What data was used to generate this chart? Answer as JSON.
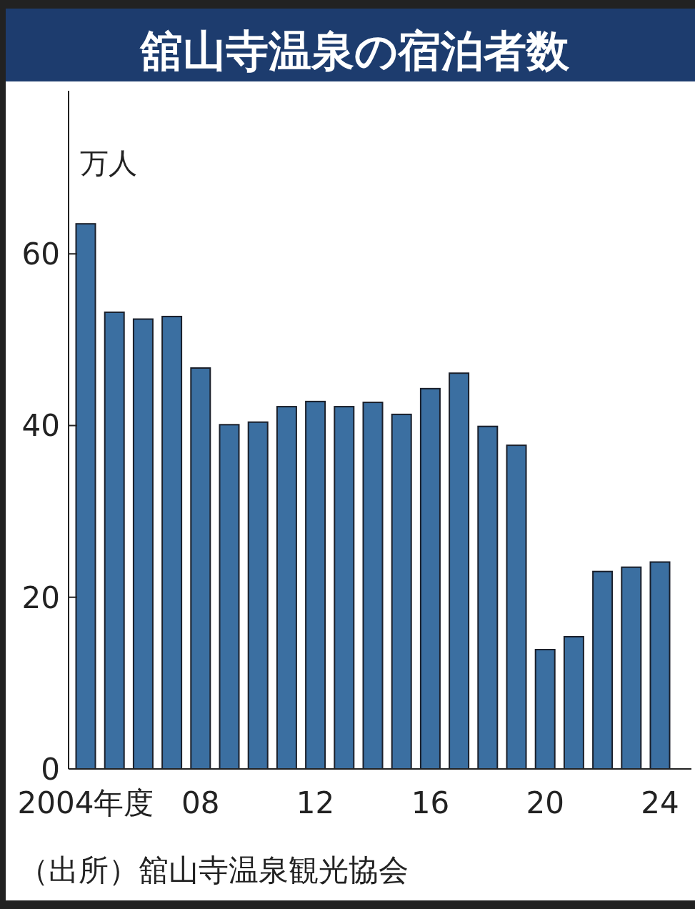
{
  "chart_data": {
    "type": "bar",
    "title": "舘山寺温泉の宿泊者数",
    "ylabel": "万人",
    "categories": [
      "2004年度",
      null,
      null,
      null,
      "08",
      null,
      null,
      null,
      "12",
      null,
      null,
      null,
      "16",
      null,
      null,
      null,
      "20",
      null,
      null,
      null,
      "24"
    ],
    "values": [
      63.5,
      53.2,
      52.4,
      52.7,
      46.7,
      40.1,
      40.4,
      42.2,
      42.8,
      42.2,
      42.7,
      41.3,
      44.3,
      46.1,
      39.9,
      37.7,
      13.9,
      15.4,
      23.0,
      23.5,
      24.1
    ],
    "color": "#3b6fa1",
    "ylim": [
      0,
      79
    ],
    "yticks": [
      0,
      20,
      40,
      60
    ],
    "grid": false,
    "legend": false,
    "annotations": [
      "（出所）舘山寺温泉観光協会"
    ]
  }
}
